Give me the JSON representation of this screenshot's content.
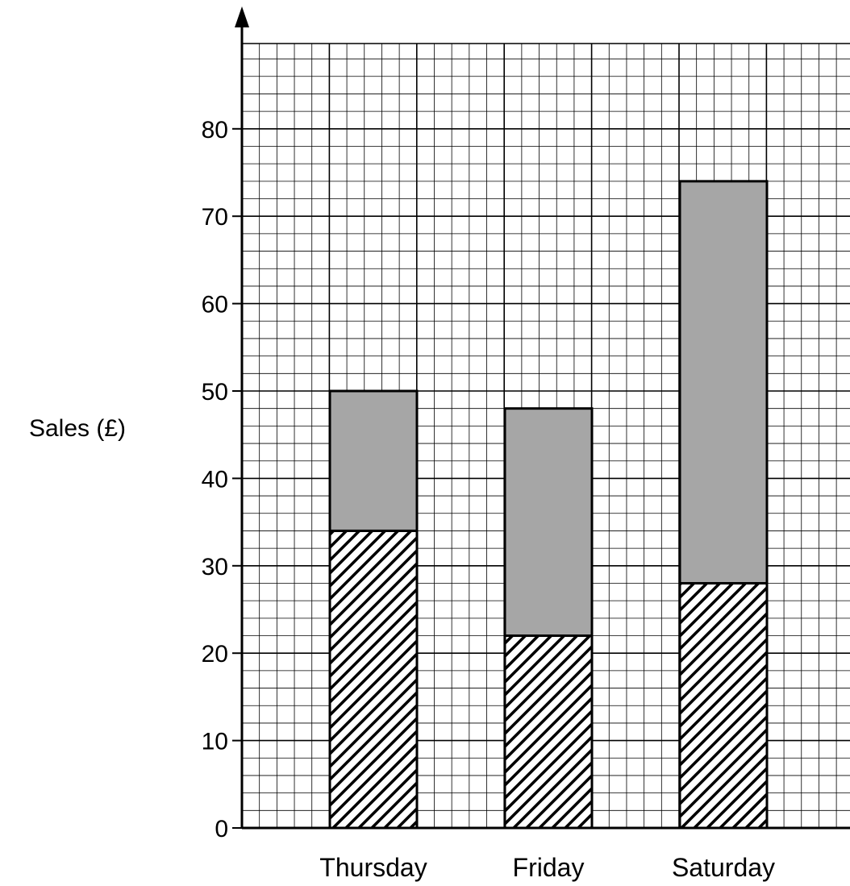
{
  "chart_data": {
    "type": "bar",
    "stacked": true,
    "title": "",
    "xlabel": "",
    "ylabel": "Sales (£)",
    "categories": [
      "Thursday",
      "Friday",
      "Saturday"
    ],
    "series": [
      {
        "values": [
          34,
          22,
          28
        ],
        "fill": "hatched"
      },
      {
        "values": [
          16,
          26,
          46
        ],
        "fill": "#a6a6a6"
      }
    ],
    "totals": [
      50,
      48,
      74
    ],
    "ylim": [
      0,
      88
    ],
    "yticks": [
      0,
      10,
      20,
      30,
      40,
      50,
      60,
      70,
      80
    ],
    "grid": true,
    "legend": "none"
  }
}
